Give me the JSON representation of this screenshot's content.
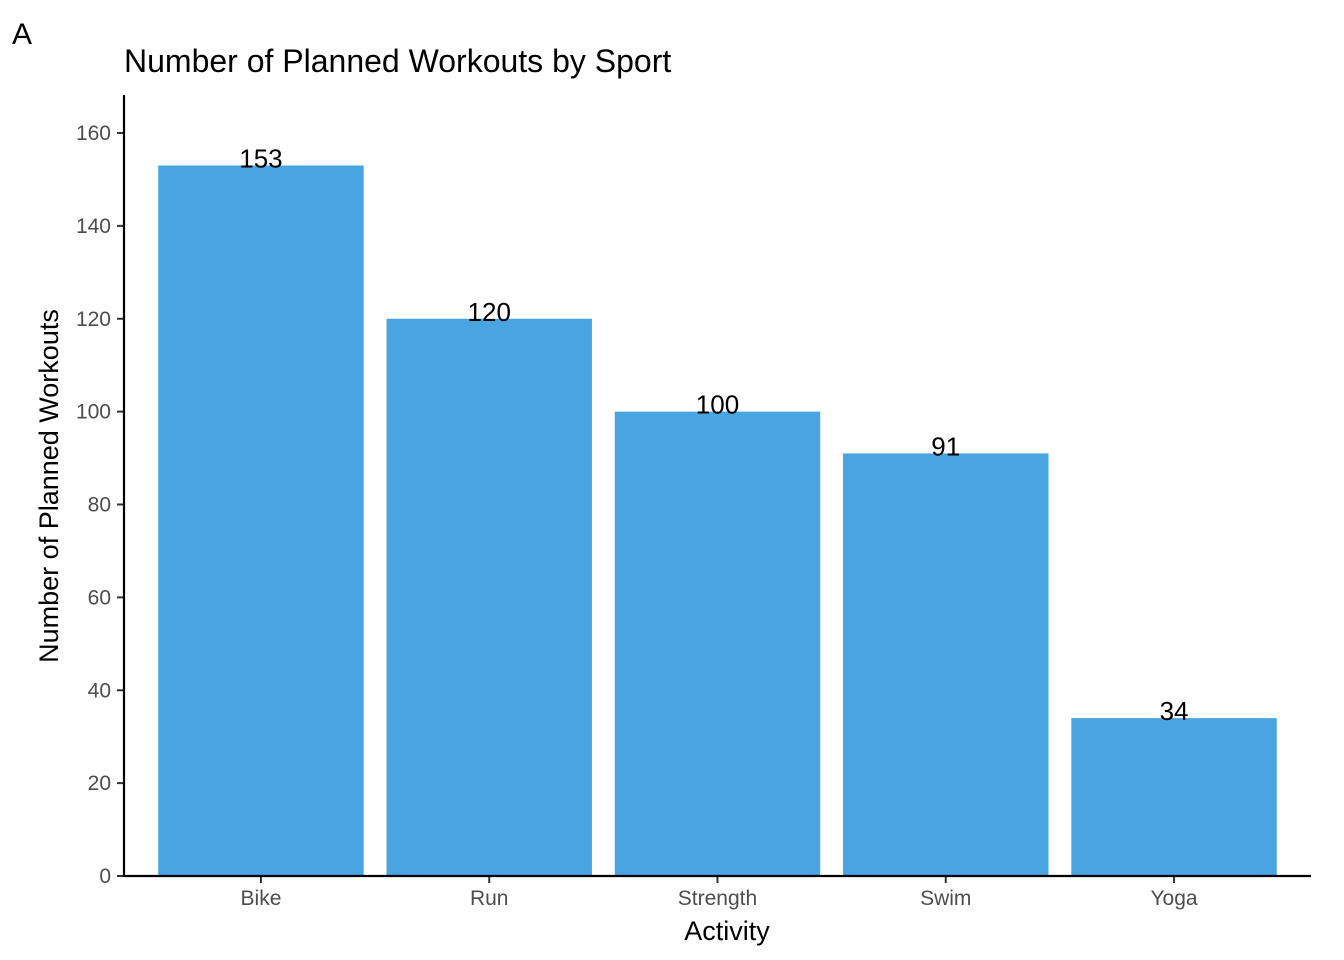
{
  "panel_tag": "A",
  "chart_data": {
    "type": "bar",
    "title": "Number of Planned Workouts by Sport",
    "xlabel": "Activity",
    "ylabel": "Number of Planned Workouts",
    "categories": [
      "Bike",
      "Run",
      "Strength",
      "Swim",
      "Yoga"
    ],
    "values": [
      153,
      120,
      100,
      91,
      34
    ],
    "data_labels": [
      "153",
      "120",
      "100",
      "91",
      "34"
    ],
    "ylim": [
      0,
      168
    ],
    "yticks": [
      0,
      20,
      40,
      60,
      80,
      100,
      120,
      140,
      160
    ],
    "ytick_labels": [
      "0",
      "20",
      "40",
      "60",
      "80",
      "100",
      "120",
      "140",
      "160"
    ],
    "grid": false,
    "legend": "none",
    "bar_color": "#49a4e2"
  }
}
